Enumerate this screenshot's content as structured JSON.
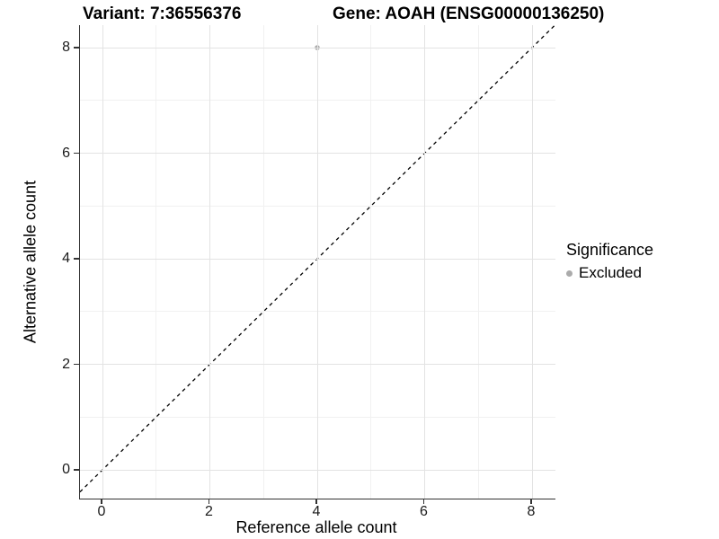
{
  "header": {
    "variant_title": "Variant: 7:36556376",
    "gene_title": "Gene: AOAH (ENSG00000136250)"
  },
  "chart_data": {
    "type": "scatter",
    "xlabel": "Reference allele count",
    "ylabel": "Alternative allele count",
    "x_ticks": [
      0,
      2,
      4,
      6,
      8
    ],
    "y_ticks": [
      0,
      2,
      4,
      6,
      8
    ],
    "x_minor_ticks": [
      1,
      3,
      5,
      7
    ],
    "y_minor_ticks": [
      1,
      3,
      5,
      7
    ],
    "xlim": [
      -0.42,
      8.43
    ],
    "ylim": [
      -0.54,
      8.43
    ],
    "grid": "major+minor",
    "points": [
      {
        "x": 4,
        "y": 8,
        "significance": "Excluded"
      }
    ],
    "identity_line": {
      "equation": "y = x",
      "style": "dashed",
      "color": "#000000"
    },
    "legend": {
      "title": "Significance",
      "position": "right",
      "items": [
        {
          "label": "Excluded",
          "color": "#ababab",
          "marker": "circle"
        }
      ]
    }
  },
  "colors": {
    "background": "#ffffff",
    "grid_major": "#e3e3e3",
    "grid_minor": "#f1f1f1",
    "axis_line": "#333333",
    "point": "#ababab",
    "dashed_line": "#000000"
  }
}
